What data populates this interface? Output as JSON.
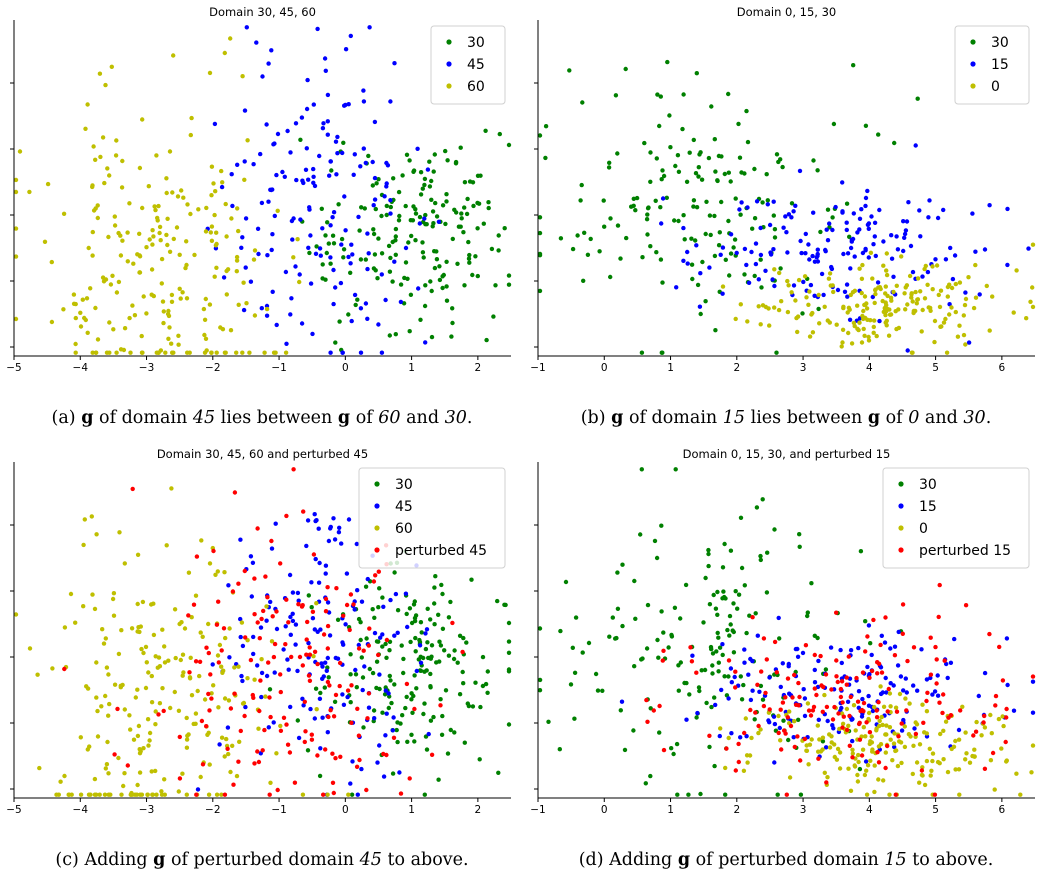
{
  "chart_data": [
    {
      "type": "scatter",
      "title": "Domain 30, 45, 60",
      "xlim": [
        -5,
        2.5
      ],
      "ylim": [
        0,
        1
      ],
      "xticks": [
        "−5",
        "−4",
        "−3",
        "−2",
        "−1",
        "0",
        "1",
        "2"
      ],
      "yticks_shown": false,
      "grid": false,
      "legend": "top-right",
      "series": [
        {
          "name": "30",
          "color": "#008000",
          "count": 190,
          "x_mean": 1.0,
          "x_sd": 0.75,
          "y_mean": 0.38,
          "y_sd": 0.14
        },
        {
          "name": "45",
          "color": "#0000ff",
          "count": 170,
          "x_mean": -0.4,
          "x_sd": 0.8,
          "y_mean": 0.45,
          "y_sd": 0.22
        },
        {
          "name": "60",
          "color": "#bfbf00",
          "count": 240,
          "x_mean": -2.8,
          "x_sd": 0.9,
          "y_mean": 0.3,
          "y_sd": 0.24
        }
      ],
      "caption": {
        "letter": "(a)",
        "bold": "g",
        "parts": [
          " of domain ",
          "45",
          " lies between ",
          "g",
          " of ",
          "60",
          " and ",
          "30",
          "."
        ]
      }
    },
    {
      "type": "scatter",
      "title": "Domain 0, 15, 30",
      "xlim": [
        -1.5,
        6
      ],
      "ylim": [
        0,
        1
      ],
      "xticks": [
        "−1",
        "0",
        "1",
        "2",
        "3",
        "4",
        "5",
        "6"
      ],
      "yticks_shown": false,
      "grid": false,
      "legend": "top-right",
      "series": [
        {
          "name": "30",
          "color": "#008000",
          "count": 180,
          "x_mean": 1.0,
          "x_sd": 1.1,
          "y_mean": 0.45,
          "y_sd": 0.2
        },
        {
          "name": "15",
          "color": "#0000ff",
          "count": 170,
          "x_mean": 3.0,
          "x_sd": 1.1,
          "y_mean": 0.32,
          "y_sd": 0.1
        },
        {
          "name": "0",
          "color": "#bfbf00",
          "count": 200,
          "x_mean": 3.8,
          "x_sd": 1.0,
          "y_mean": 0.15,
          "y_sd": 0.07
        }
      ],
      "caption": {
        "letter": "(b)",
        "bold": "g",
        "parts": [
          " of domain ",
          "15",
          " lies between ",
          "g",
          " of ",
          "0",
          " and ",
          "30",
          "."
        ]
      }
    },
    {
      "type": "scatter",
      "title": "Domain 30, 45, 60 and perturbed 45",
      "xlim": [
        -5,
        2.5
      ],
      "ylim": [
        0,
        1
      ],
      "xticks": [
        "−5",
        "−4",
        "−3",
        "−2",
        "−1",
        "0",
        "1",
        "2"
      ],
      "yticks_shown": false,
      "grid": false,
      "legend": "top-right",
      "series": [
        {
          "name": "30",
          "color": "#008000",
          "count": 190,
          "x_mean": 1.0,
          "x_sd": 0.75,
          "y_mean": 0.38,
          "y_sd": 0.14
        },
        {
          "name": "45",
          "color": "#0000ff",
          "count": 170,
          "x_mean": -0.4,
          "x_sd": 0.8,
          "y_mean": 0.45,
          "y_sd": 0.22
        },
        {
          "name": "60",
          "color": "#bfbf00",
          "count": 240,
          "x_mean": -2.8,
          "x_sd": 0.9,
          "y_mean": 0.3,
          "y_sd": 0.24
        },
        {
          "name": "perturbed 45",
          "color": "#ff0000",
          "count": 170,
          "x_mean": -0.8,
          "x_sd": 1.1,
          "y_mean": 0.4,
          "y_sd": 0.22
        }
      ],
      "caption": {
        "letter": "(c)",
        "bold": "g",
        "parts": [
          "Adding ",
          "g",
          " of perturbed domain ",
          "45",
          " to above."
        ]
      }
    },
    {
      "type": "scatter",
      "title": "Domain 0, 15, 30, and perturbed 15",
      "xlim": [
        -1.5,
        6
      ],
      "ylim": [
        0,
        1
      ],
      "xticks": [
        "−1",
        "0",
        "1",
        "2",
        "3",
        "4",
        "5",
        "6"
      ],
      "yticks_shown": false,
      "grid": false,
      "legend": "top-right",
      "series": [
        {
          "name": "30",
          "color": "#008000",
          "count": 180,
          "x_mean": 1.0,
          "x_sd": 1.1,
          "y_mean": 0.45,
          "y_sd": 0.2
        },
        {
          "name": "15",
          "color": "#0000ff",
          "count": 170,
          "x_mean": 3.0,
          "x_sd": 1.1,
          "y_mean": 0.32,
          "y_sd": 0.1
        },
        {
          "name": "0",
          "color": "#bfbf00",
          "count": 200,
          "x_mean": 3.8,
          "x_sd": 1.0,
          "y_mean": 0.15,
          "y_sd": 0.07
        },
        {
          "name": "perturbed 15",
          "color": "#ff0000",
          "count": 170,
          "x_mean": 3.2,
          "x_sd": 1.3,
          "y_mean": 0.3,
          "y_sd": 0.12
        }
      ],
      "caption": {
        "letter": "(d)",
        "bold": "g",
        "parts": [
          "Adding ",
          "g",
          " of perturbed domain ",
          "15",
          " to above."
        ]
      }
    }
  ]
}
